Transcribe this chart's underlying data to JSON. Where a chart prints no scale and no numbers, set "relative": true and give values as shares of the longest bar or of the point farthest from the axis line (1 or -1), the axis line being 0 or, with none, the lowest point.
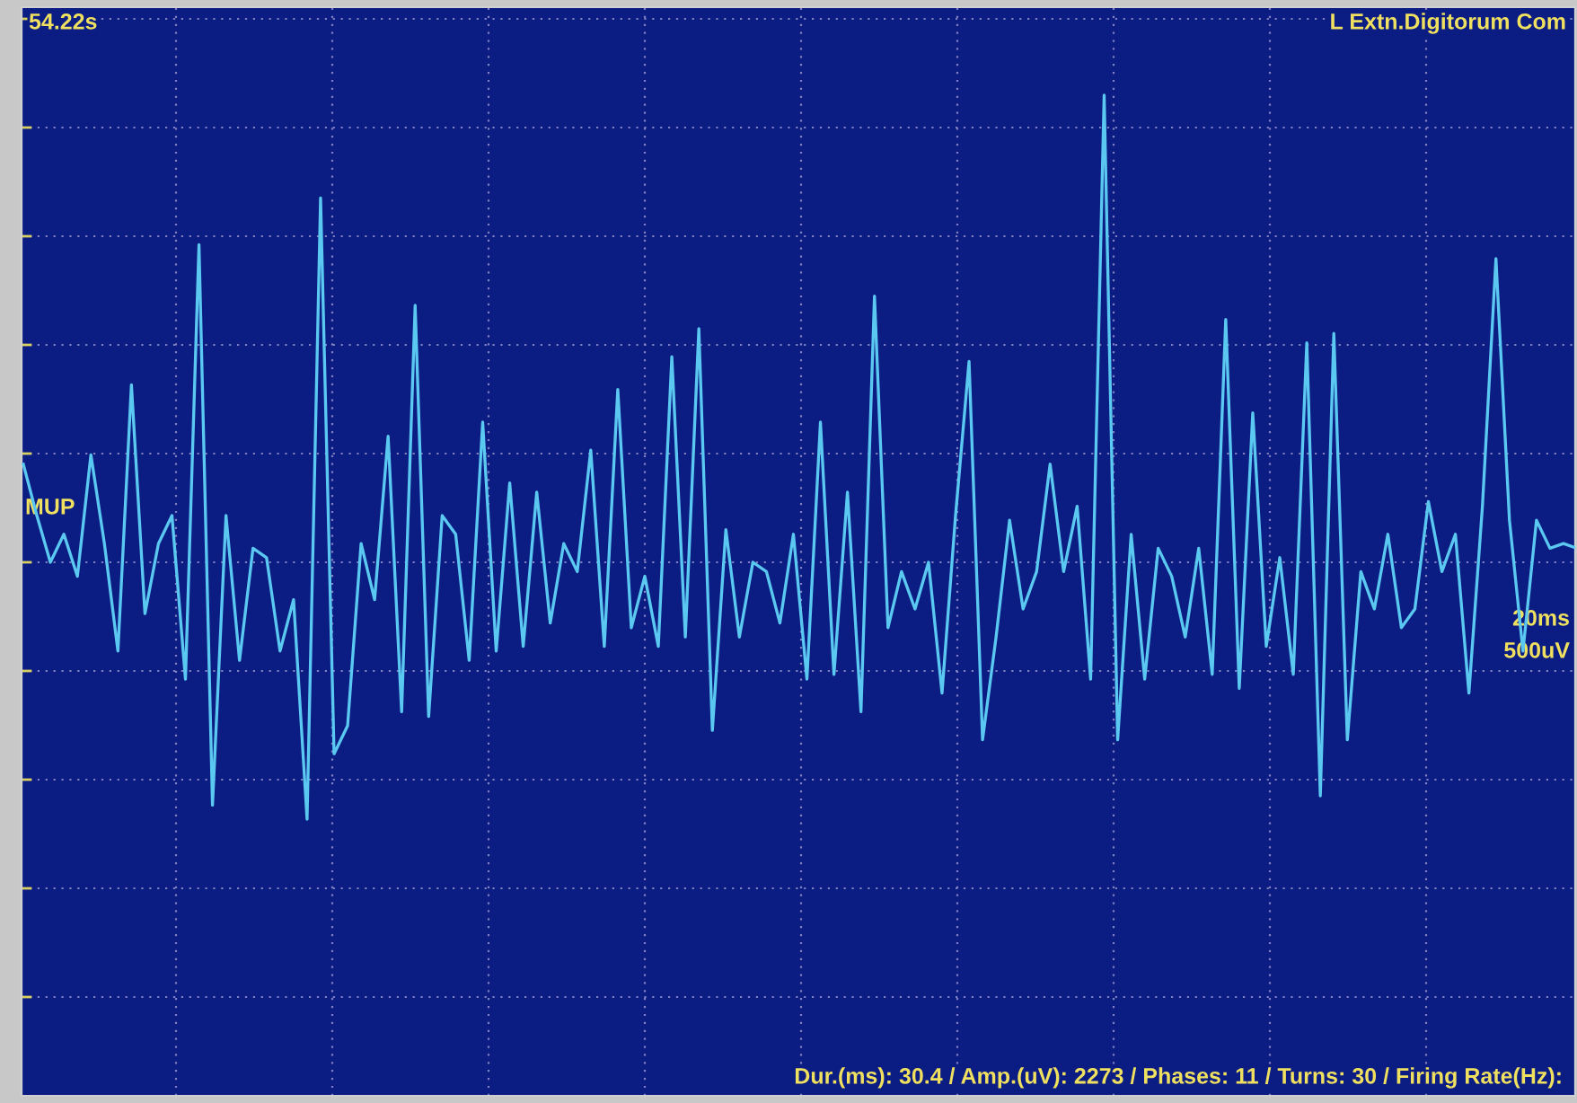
{
  "chart_data": {
    "type": "line",
    "relative": true,
    "grid": true,
    "marker": "none",
    "line_style": "solid",
    "annotations": [
      "54.22s",
      "L Extn.Digitorum Com",
      "20ms",
      "500uV",
      "Dur.(ms): 30.4 / Amp.(uV): 2273 / Phases: 11 / Turns: 30 / Firing Rate(Hz):"
    ],
    "categories": [
      null,
      null,
      null,
      null,
      null,
      null,
      null,
      null,
      null,
      null,
      null,
      null,
      null,
      null,
      null,
      null,
      null,
      null,
      null,
      null,
      null,
      null,
      null,
      null,
      null,
      null,
      null,
      null,
      null,
      null,
      null,
      null,
      null,
      null,
      null,
      null,
      null,
      null,
      null,
      null,
      null,
      null,
      null,
      null,
      null,
      null,
      null,
      null,
      null,
      null,
      null,
      null,
      null,
      null,
      null,
      null,
      null,
      null,
      null,
      null,
      null,
      null,
      null,
      null,
      null,
      null,
      null,
      null,
      null,
      null,
      null,
      null,
      null,
      null,
      null,
      null,
      null,
      null,
      null,
      null,
      null,
      null,
      null,
      null,
      null,
      null,
      null,
      null,
      null,
      null,
      null,
      null,
      null,
      null,
      null,
      null,
      null,
      null,
      null,
      null,
      null,
      null,
      null,
      null,
      null,
      null,
      null,
      null,
      null,
      null,
      null,
      null,
      null,
      null,
      null,
      null
    ],
    "series": [
      {
        "name": "MUP",
        "color": "#5ac8f0",
        "values": [
          0.21,
          0.1,
          0,
          0.06,
          -0.03,
          0.23,
          0.04,
          -0.19,
          0.38,
          -0.11,
          0.04,
          0.1,
          -0.25,
          0.68,
          -0.52,
          0.1,
          -0.21,
          0.03,
          0.01,
          -0.19,
          -0.08,
          -0.55,
          0.78,
          -0.41,
          -0.35,
          0.04,
          -0.08,
          0.27,
          -0.32,
          0.55,
          -0.33,
          0.1,
          0.06,
          -0.21,
          0.3,
          -0.19,
          0.17,
          -0.18,
          0.15,
          -0.13,
          0.04,
          -0.02,
          0.24,
          -0.18,
          0.37,
          -0.14,
          -0.03,
          -0.18,
          0.44,
          -0.16,
          0.5,
          -0.36,
          0.07,
          -0.16,
          0,
          -0.02,
          -0.13,
          0.06,
          -0.25,
          0.3,
          -0.24,
          0.15,
          -0.32,
          0.57,
          -0.14,
          -0.02,
          -0.1,
          0,
          -0.28,
          0.1,
          0.43,
          -0.38,
          -0.16,
          0.09,
          -0.1,
          -0.02,
          0.21,
          -0.02,
          0.12,
          -0.25,
          1.0,
          -0.38,
          0.06,
          -0.25,
          0.03,
          -0.03,
          -0.16,
          0.03,
          -0.24,
          0.52,
          -0.27,
          0.32,
          -0.18,
          0.01,
          -0.24,
          0.47,
          -0.5,
          0.49,
          -0.38,
          -0.02,
          -0.1,
          0.06,
          -0.14,
          -0.1,
          0.13,
          -0.02,
          0.06,
          -0.28,
          0.12,
          0.65,
          0.09,
          -0.19,
          0.09,
          0.03,
          0.04,
          0.03
        ]
      }
    ]
  }
}
